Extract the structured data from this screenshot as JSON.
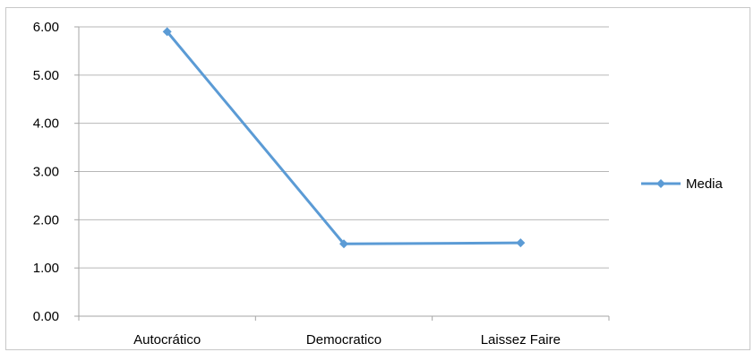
{
  "chart_data": {
    "type": "line",
    "categories": [
      "Autocrático",
      "Democratico",
      "Laissez Faire"
    ],
    "series": [
      {
        "name": "Media",
        "values": [
          5.9,
          1.5,
          1.52
        ],
        "color": "#5b9bd5",
        "marker": "diamond"
      }
    ],
    "y_ticks": [
      "0.00",
      "1.00",
      "2.00",
      "3.00",
      "4.00",
      "5.00",
      "6.00"
    ],
    "ylim": [
      0,
      6
    ],
    "grid": true,
    "legend_position": "right",
    "gridline_color": "#b7b7b7",
    "axis_color": "#a6a6a6"
  }
}
